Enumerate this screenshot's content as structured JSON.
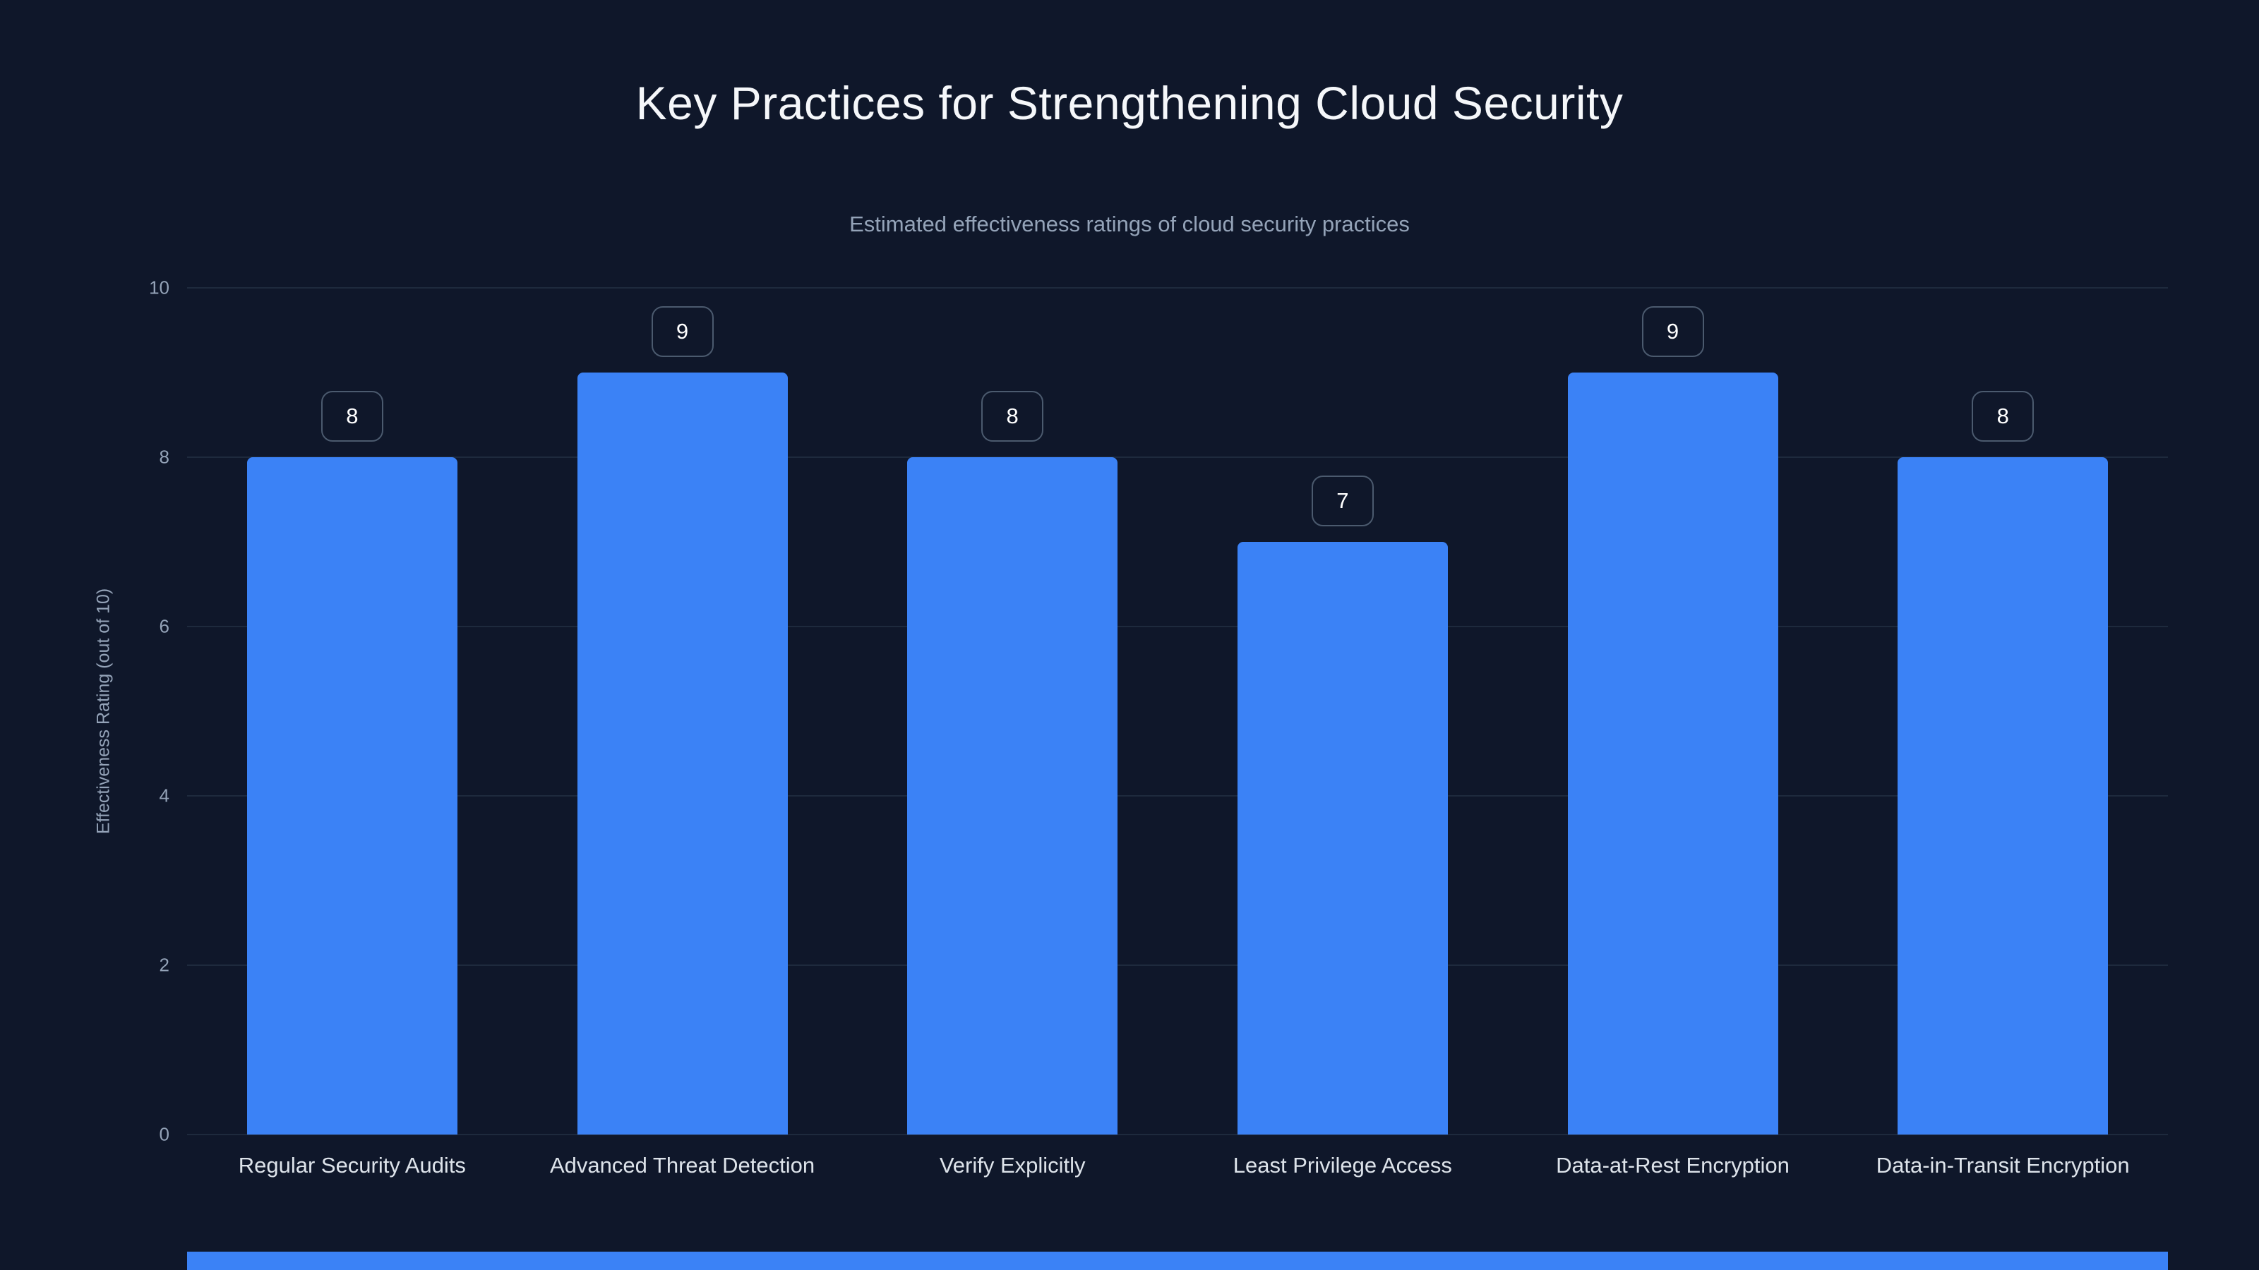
{
  "page": {
    "background_color": "#0f172a",
    "text_color": "#f5f7fa",
    "muted_text_color": "#94a3b8"
  },
  "chart_data": {
    "type": "bar",
    "title": "Key Practices for Strengthening Cloud Security",
    "subtitle": "Estimated effectiveness ratings of cloud security practices",
    "categories": [
      "Regular Security Audits",
      "Advanced Threat Detection",
      "Verify Explicitly",
      "Least Privilege Access",
      "Data-at-Rest Encryption",
      "Data-in-Transit Encryption"
    ],
    "values": [
      8,
      9,
      8,
      7,
      9,
      8
    ],
    "value_labels": [
      "8",
      "9",
      "8",
      "7",
      "9",
      "8"
    ],
    "xlabel": "",
    "ylabel": "Effectiveness Rating (out of 10)",
    "ylim": [
      0,
      10
    ],
    "yticks": [
      0,
      2,
      4,
      6,
      8,
      10
    ],
    "grid": true,
    "legend": "none",
    "bar_color": "#3b82f6",
    "gridline_color": "#1e2a3d",
    "badge_border_color": "#4b5a6e",
    "badge_text_color": "#ffffff"
  }
}
